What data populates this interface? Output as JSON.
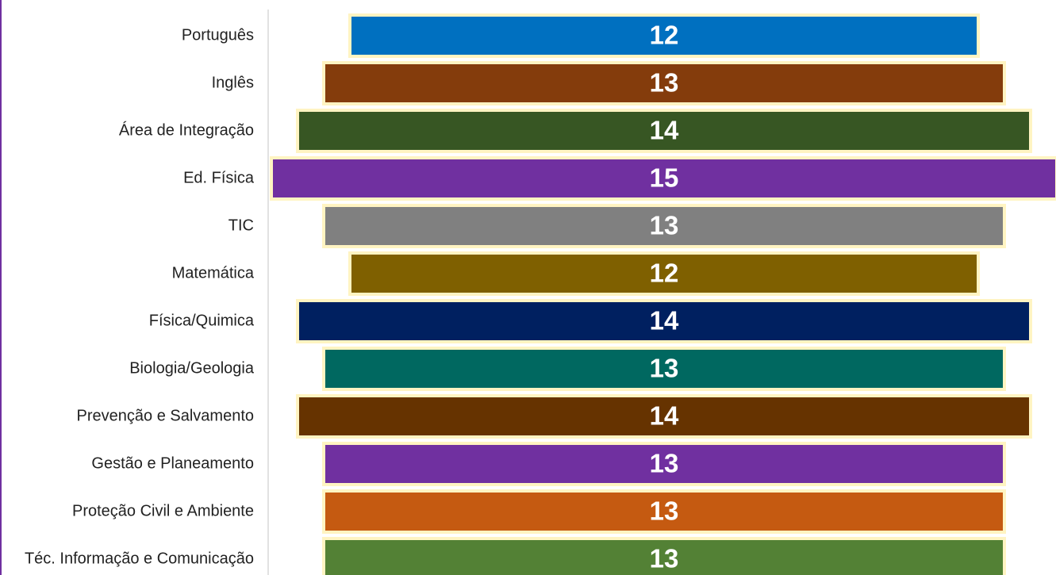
{
  "chart_data": {
    "type": "funnel",
    "categories": [
      "Português",
      "Inglês",
      "Área de Integração",
      "Ed. Física",
      "TIC",
      "Matemática",
      "Física/Quimica",
      "Biologia/Geologia",
      "Prevenção e Salvamento",
      "Gestão e Planeamento",
      "Proteção Civil e Ambiente",
      "Téc. Informação e Comunicação"
    ],
    "values": [
      12,
      13,
      14,
      15,
      13,
      12,
      14,
      13,
      14,
      13,
      13,
      13
    ],
    "colors": [
      "#0070c0",
      "#843c0c",
      "#375623",
      "#7030a0",
      "#808080",
      "#7f6000",
      "#002060",
      "#006860",
      "#663300",
      "#7030a0",
      "#c55a11",
      "#538135"
    ]
  }
}
